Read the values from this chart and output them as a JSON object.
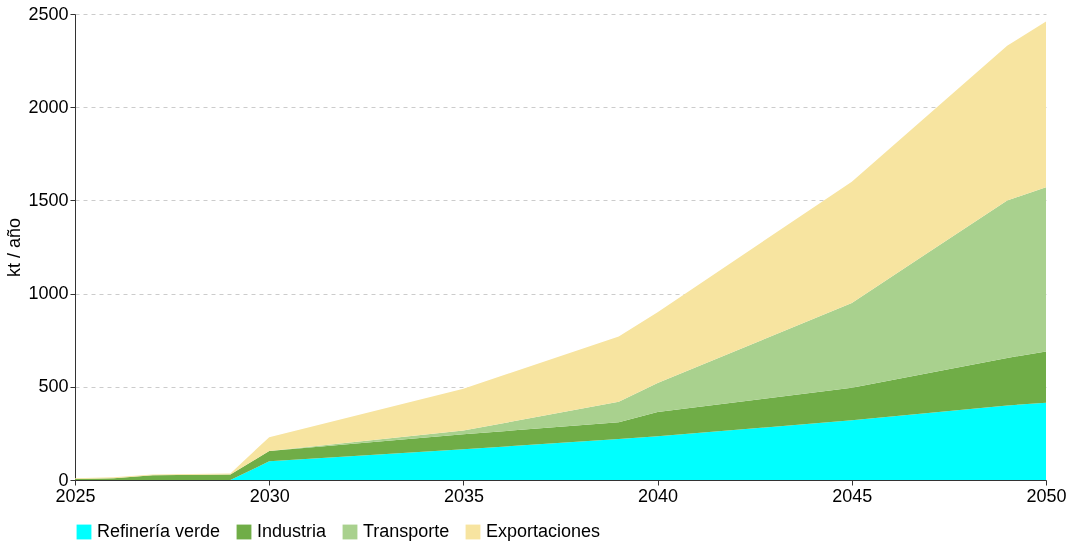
{
  "chart_data": {
    "type": "area",
    "stacked": true,
    "ylabel": "kt / año",
    "x": [
      2025,
      2026,
      2027,
      2029,
      2030,
      2035,
      2039,
      2040,
      2045,
      2049,
      2050
    ],
    "series": [
      {
        "name": "Refinería verde",
        "color": "#00ffff",
        "values": [
          0,
          0,
          0,
          0,
          100,
          165,
          220,
          235,
          320,
          400,
          415
        ]
      },
      {
        "name": "Industria",
        "color": "#70ad47",
        "values": [
          5,
          10,
          25,
          30,
          55,
          80,
          90,
          130,
          175,
          255,
          275
        ]
      },
      {
        "name": "Transporte",
        "color": "#a9d18e",
        "values": [
          0,
          0,
          0,
          0,
          0,
          20,
          110,
          155,
          455,
          845,
          880
        ]
      },
      {
        "name": "Exportaciones",
        "color": "#f7e4a0",
        "values": [
          5,
          5,
          5,
          5,
          75,
          225,
          350,
          380,
          650,
          830,
          890
        ]
      }
    ],
    "xlim": [
      2025,
      2050
    ],
    "xticks": [
      2025,
      2030,
      2035,
      2040,
      2045,
      2050
    ],
    "ylim": [
      0,
      2500
    ],
    "yticks": [
      0,
      500,
      1000,
      1500,
      2000,
      2500
    ],
    "grid": "y",
    "legend": "bottom"
  }
}
